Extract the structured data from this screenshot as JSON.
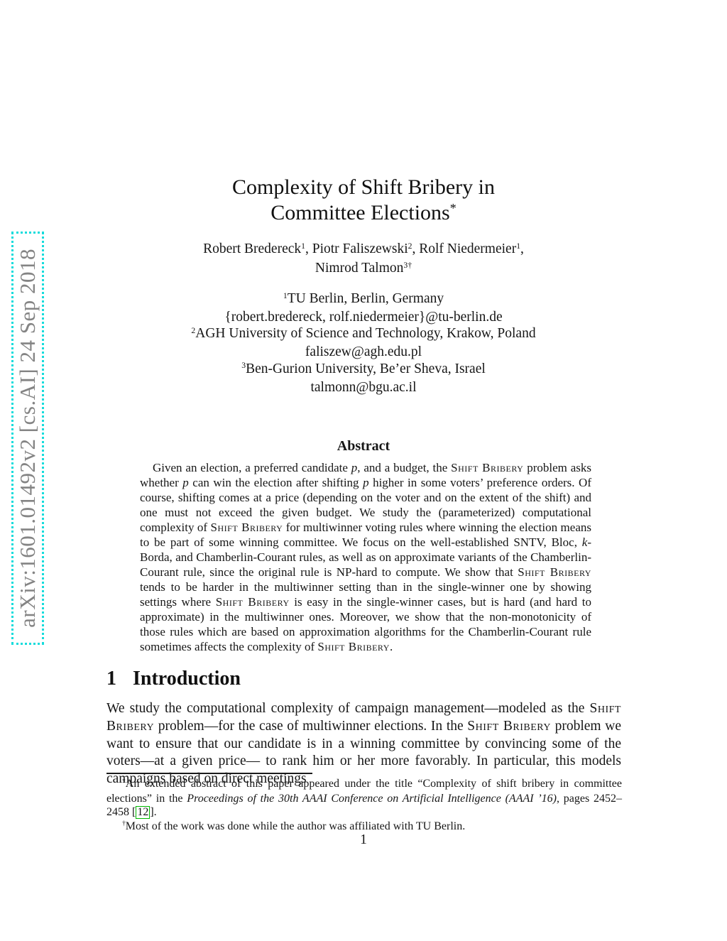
{
  "watermark": {
    "text": "arXiv:1601.01492v2  [cs.AI]  24 Sep 2018"
  },
  "title": {
    "line1": [
      {
        "t": "Complexity of Shift Bribery in"
      }
    ],
    "line2": [
      {
        "t": "Committee Elections"
      },
      {
        "t": "*",
        "c": "sup"
      }
    ]
  },
  "authors": {
    "line1": [
      {
        "t": "Robert Bredereck"
      },
      {
        "t": "1",
        "c": "sup"
      },
      {
        "t": ", Piotr Faliszewski"
      },
      {
        "t": "2",
        "c": "sup"
      },
      {
        "t": ", Rolf Niedermeier"
      },
      {
        "t": "1",
        "c": "sup"
      },
      {
        "t": ","
      }
    ],
    "line2": [
      {
        "t": "Nimrod Talmon"
      },
      {
        "t": "3†",
        "c": "sup"
      }
    ]
  },
  "affiliations": [
    [
      {
        "t": "1",
        "c": "sup"
      },
      {
        "t": "TU Berlin, Berlin, Germany"
      }
    ],
    [
      {
        "t": "{robert.bredereck, rolf.niedermeier}@tu-berlin.de"
      }
    ],
    [
      {
        "t": "2",
        "c": "sup"
      },
      {
        "t": "AGH University of Science and Technology, Krakow, Poland"
      }
    ],
    [
      {
        "t": "faliszew@agh.edu.pl"
      }
    ],
    [
      {
        "t": "3",
        "c": "sup"
      },
      {
        "t": "Ben-Gurion University, Be’er Sheva, Israel"
      }
    ],
    [
      {
        "t": "talmonn@bgu.ac.il"
      }
    ]
  ],
  "abstract": {
    "heading": "Abstract",
    "body": [
      {
        "t": "Given an election, a preferred candidate "
      },
      {
        "t": "p",
        "c": "it"
      },
      {
        "t": ", and a budget, the "
      },
      {
        "t": "Shift Bribery",
        "c": "sc"
      },
      {
        "t": " problem asks whether "
      },
      {
        "t": "p",
        "c": "it"
      },
      {
        "t": " can win the election after shifting "
      },
      {
        "t": "p",
        "c": "it"
      },
      {
        "t": " higher in some voters’ preference orders. Of course, shifting comes at a price (depending on the voter and on the extent of the shift) and one must not exceed the given budget. We study the (parameterized) computational complexity of "
      },
      {
        "t": "Shift Bribery",
        "c": "sc"
      },
      {
        "t": " for multiwinner voting rules where winning the election means to be part of some winning committee. We focus on the well-established SNTV, Bloc, "
      },
      {
        "t": "k",
        "c": "it"
      },
      {
        "t": "-Borda, and Chamberlin-Courant rules, as well as on approximate variants of the Chamberlin-Courant rule, since the original rule is NP-hard to compute. We show that "
      },
      {
        "t": "Shift Bribery",
        "c": "sc"
      },
      {
        "t": " tends to be harder in the multiwinner setting than in the single-winner one by showing settings where "
      },
      {
        "t": "Shift Bribery",
        "c": "sc"
      },
      {
        "t": " is easy in the single-winner cases, but is hard (and hard to approximate) in the multiwinner ones. Moreover, we show that the non-monotonicity of those rules which are based on approximation algorithms for the Chamberlin-Courant rule sometimes affects the complexity of "
      },
      {
        "t": "Shift Bribery",
        "c": "sc"
      },
      {
        "t": "."
      }
    ]
  },
  "section": {
    "number": "1",
    "title": "Introduction"
  },
  "intro": {
    "body": [
      {
        "t": "We study the computational complexity of campaign management—modeled as the "
      },
      {
        "t": "Shift Bribery",
        "c": "sc"
      },
      {
        "t": " problem—for the case of multiwinner elections. In the "
      },
      {
        "t": "Shift Bribery",
        "c": "sc"
      },
      {
        "t": " problem we want to ensure that our candidate is in a winning committee by convincing some of the voters—at a given price— to rank him or her more favorably. In particular, this models campaigns based on direct meetings"
      }
    ]
  },
  "footnotes": [
    [
      {
        "t": "*",
        "c": "sup"
      },
      {
        "t": "An extended abstract of this paper appeared under the title “Complexity of shift bribery in committee elections” in the "
      },
      {
        "t": "Proceedings of the 30th AAAI Conference on Artificial Intelligence (AAAI ’16)",
        "c": "it"
      },
      {
        "t": ", pages 2452–2458 ["
      },
      {
        "t": "12",
        "c": "grn"
      },
      {
        "t": "]."
      }
    ],
    [
      {
        "t": "†",
        "c": "sup"
      },
      {
        "t": "Most of the work was done while the author was affiliated with TU Berlin."
      }
    ]
  ],
  "page_number": "1",
  "colors": {
    "citation_link_green": "#00ba00",
    "watermark_gray": "#848484",
    "watermark_cyan": "#16dcdc"
  }
}
